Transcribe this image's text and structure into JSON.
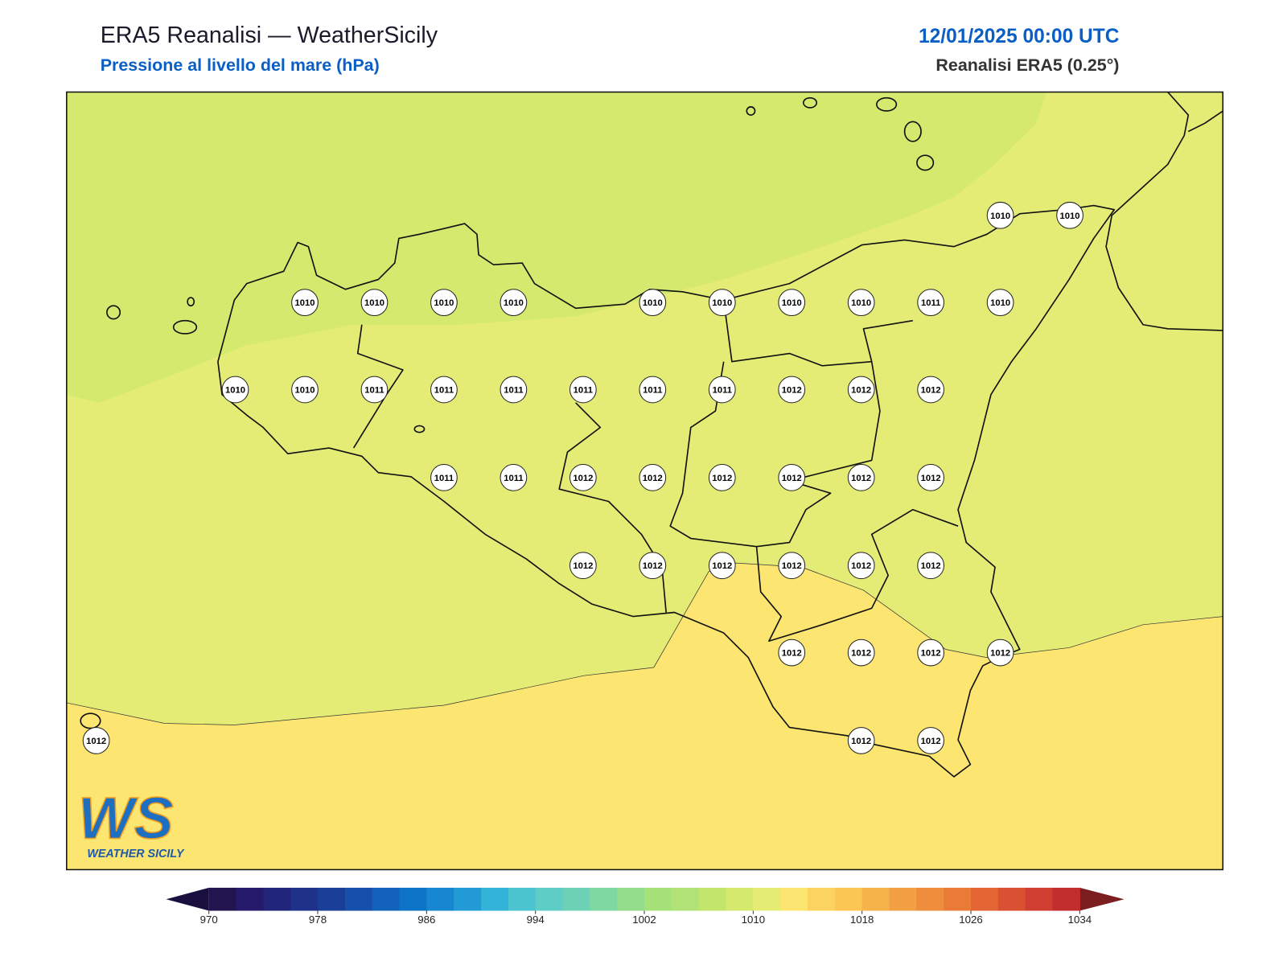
{
  "header": {
    "title": "ERA5 Reanalisi — WeatherSicily",
    "subtitle": "Pressione al livello del mare (hPa)",
    "datetime": "12/01/2025 00:00 UTC",
    "source": "Reanalisi ERA5 (0.25°)"
  },
  "pressure_grid": [
    [
      null,
      null,
      null,
      null,
      null,
      null,
      null,
      null,
      null,
      null,
      null,
      null,
      null,
      1010,
      1010
    ],
    [
      null,
      null,
      null,
      1010,
      1010,
      1010,
      1010,
      null,
      1010,
      1010,
      1010,
      1010,
      1011,
      1010,
      null
    ],
    [
      null,
      null,
      1010,
      1010,
      1011,
      1011,
      1011,
      1011,
      1011,
      1011,
      1012,
      1012,
      1012,
      null,
      null
    ],
    [
      null,
      null,
      null,
      null,
      null,
      1011,
      1011,
      1012,
      1012,
      1012,
      1012,
      1012,
      1012,
      null,
      null
    ],
    [
      null,
      null,
      null,
      null,
      null,
      null,
      null,
      1012,
      1012,
      1012,
      1012,
      1012,
      1012,
      null,
      null
    ],
    [
      null,
      null,
      null,
      null,
      null,
      null,
      null,
      null,
      null,
      null,
      1012,
      1012,
      1012,
      1012,
      null
    ],
    [
      1012,
      null,
      null,
      null,
      null,
      null,
      null,
      null,
      null,
      null,
      null,
      1012,
      1012,
      null,
      null
    ]
  ],
  "colorbar": {
    "lim": [
      970,
      1034
    ],
    "ticks": [
      970,
      978,
      986,
      994,
      1002,
      1010,
      1018,
      1026,
      1034
    ],
    "colors": [
      "#22154f",
      "#24196a",
      "#202579",
      "#1d3288",
      "#1a3f98",
      "#1650aa",
      "#1262bc",
      "#0e74c8",
      "#1687d0",
      "#229ad6",
      "#32b2d6",
      "#4cc4d0",
      "#5ecdc6",
      "#6dd2b5",
      "#7fd8a2",
      "#93dd8c",
      "#a6e279",
      "#b0e277",
      "#c2e66c",
      "#d4e96e",
      "#e5ec76",
      "#fce570",
      "#fdd35f",
      "#fbc653",
      "#f6b34a",
      "#f2a043",
      "#ee8e3c",
      "#e97a37",
      "#e36533",
      "#da5032",
      "#cf3e30",
      "#c22e2e"
    ],
    "under_color": "#1a1040",
    "over_color": "#7a1e20"
  },
  "logo": {
    "mark": "WS",
    "name": "WEATHER SICILY"
  }
}
